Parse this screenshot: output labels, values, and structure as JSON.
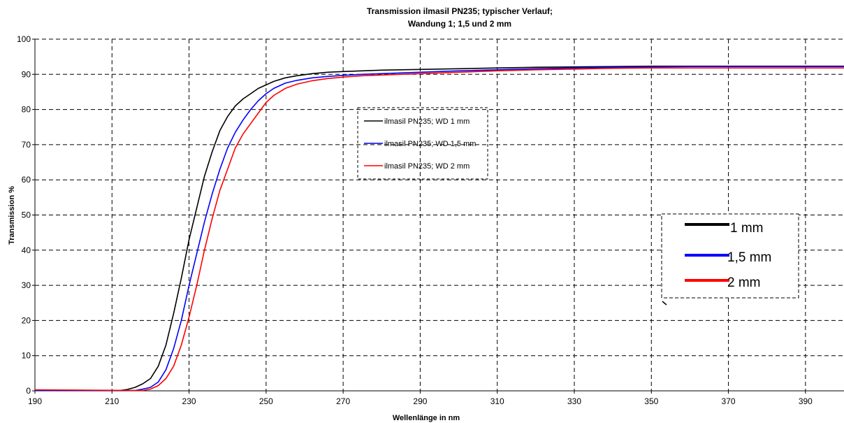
{
  "chart_data": {
    "type": "line",
    "title": "Transmission ilmasil PN235; typischer Verlauf;",
    "subtitle": "Wandung 1; 1,5 und 2 mm",
    "xlabel": "Wellenlänge in nm",
    "ylabel": "Transmission %",
    "xlim": [
      190,
      400
    ],
    "ylim": [
      0,
      100
    ],
    "x_ticks": [
      "190",
      "210",
      "230",
      "250",
      "270",
      "290",
      "310",
      "330",
      "350",
      "370",
      "390"
    ],
    "y_ticks": [
      "0",
      "10",
      "20",
      "30",
      "40",
      "50",
      "60",
      "70",
      "80",
      "90",
      "100"
    ],
    "grid": true,
    "grid_style": "dashed",
    "series": [
      {
        "name": "ilmasil PN235; WD 1 mm",
        "color": "#000000",
        "x": [
          190,
          212,
          214,
          216,
          218,
          220,
          222,
          224,
          226,
          228,
          230,
          232,
          234,
          236,
          238,
          240,
          242,
          244,
          246,
          248,
          250,
          252,
          255,
          258,
          262,
          266,
          270,
          275,
          280,
          290,
          300,
          310,
          320,
          330,
          340,
          350,
          360,
          370,
          380,
          390,
          400
        ],
        "y": [
          0.2,
          0.1,
          0.4,
          1,
          2,
          3.5,
          7,
          13,
          22,
          32,
          43,
          52,
          61,
          68,
          74,
          78,
          81,
          83,
          84.5,
          86,
          87,
          88,
          89,
          89.6,
          90.2,
          90.6,
          90.8,
          91,
          91.2,
          91.4,
          91.6,
          91.8,
          92,
          92.1,
          92.2,
          92.3,
          92.3,
          92.3,
          92.3,
          92.3,
          92.3
        ]
      },
      {
        "name": "ilmasil PN235; WD 1,5 mm",
        "color": "#0000ff",
        "x": [
          190,
          216,
          218,
          220,
          222,
          224,
          226,
          228,
          230,
          232,
          234,
          236,
          238,
          240,
          242,
          244,
          246,
          248,
          250,
          252,
          255,
          258,
          262,
          266,
          270,
          275,
          280,
          290,
          300,
          310,
          320,
          330,
          340,
          350,
          360,
          370,
          380,
          390,
          400
        ],
        "y": [
          0.1,
          0.1,
          0.5,
          1,
          2.5,
          6,
          12,
          20,
          30,
          39,
          48,
          56,
          63,
          69,
          73.5,
          77,
          80,
          82.5,
          84.5,
          86,
          87.5,
          88.3,
          89,
          89.4,
          89.7,
          90,
          90.2,
          90.6,
          91,
          91.3,
          91.6,
          91.8,
          92,
          92.1,
          92.2,
          92.2,
          92.2,
          92.2,
          92.2
        ]
      },
      {
        "name": "ilmasil PN235; WD 2 mm",
        "color": "#ff0000",
        "x": [
          190,
          218,
          220,
          222,
          224,
          226,
          228,
          230,
          232,
          234,
          236,
          238,
          240,
          242,
          244,
          246,
          248,
          250,
          252,
          255,
          258,
          262,
          266,
          270,
          275,
          280,
          290,
          300,
          310,
          320,
          330,
          340,
          350,
          360,
          370,
          380,
          390,
          400
        ],
        "y": [
          0.3,
          0.1,
          0.5,
          1.5,
          3.5,
          7,
          13,
          21,
          30,
          40,
          49,
          57,
          63,
          69,
          73,
          76,
          79,
          82,
          84,
          86,
          87.2,
          88.2,
          88.8,
          89.2,
          89.6,
          89.8,
          90.2,
          90.6,
          91,
          91.3,
          91.5,
          91.7,
          91.8,
          91.8,
          91.8,
          91.8,
          91.8,
          91.8
        ]
      }
    ],
    "legend_small": {
      "placement": "center",
      "entries": [
        "ilmasil PN235; WD 1 mm",
        "ilmasil PN235; WD 1,5 mm",
        "ilmasil PN235; WD 2 mm"
      ]
    },
    "legend_large": {
      "placement": "right",
      "entries": [
        {
          "label": "1 mm",
          "color": "#000000"
        },
        {
          "label": "1,5 mm",
          "color": "#0000ff"
        },
        {
          "label": "2 mm",
          "color": "#ff0000"
        }
      ]
    }
  }
}
